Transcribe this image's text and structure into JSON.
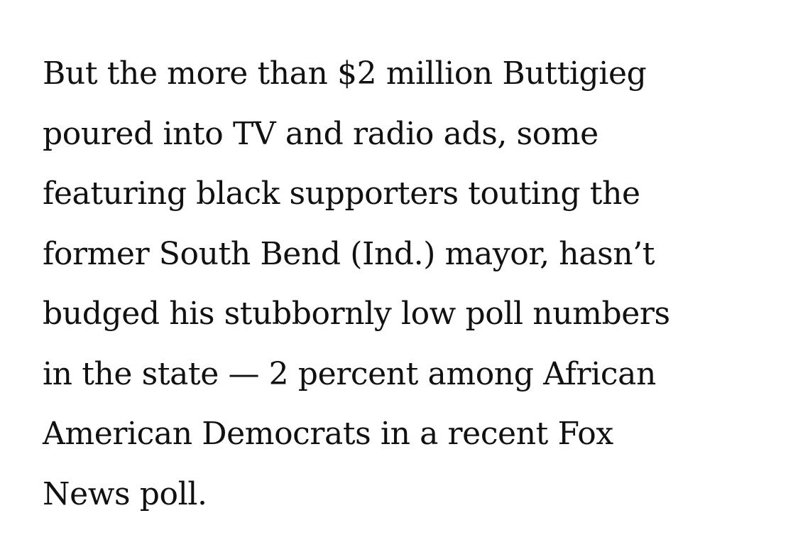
{
  "article": {
    "lines": [
      "But the more than $2 million Buttigieg",
      "poured into TV and radio ads, some",
      "featuring black supporters touting the",
      "former South Bend (Ind.) mayor, hasn’t",
      "budged his stubbornly low poll numbers",
      "in the state — 2 percent among African",
      "American Democrats in a recent Fox",
      "News poll."
    ]
  },
  "colors": {
    "background": "#ffffff",
    "text": "#111111"
  }
}
